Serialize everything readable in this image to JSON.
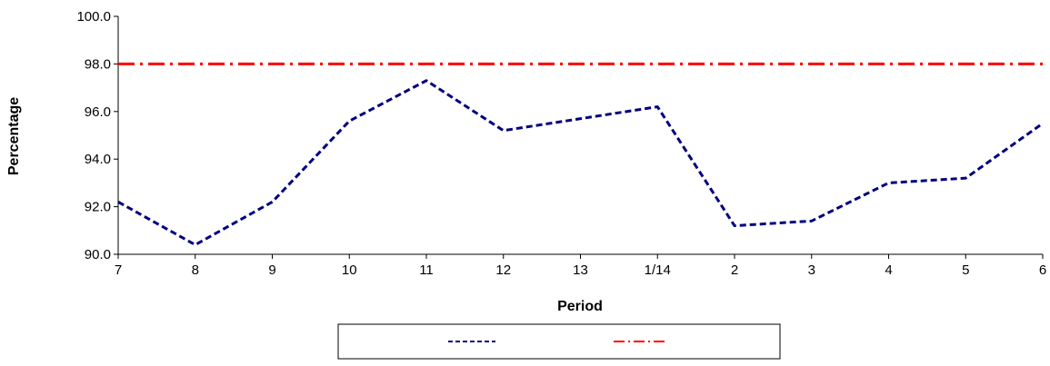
{
  "chart_data": {
    "type": "line",
    "title": "",
    "xlabel": "Period",
    "ylabel": "Percentage",
    "categories": [
      "7",
      "8",
      "9",
      "10",
      "11",
      "12",
      "13",
      "1/14",
      "2",
      "3",
      "4",
      "5",
      "6"
    ],
    "ylim": [
      90,
      100
    ],
    "yticks": [
      "90.0",
      "92.0",
      "94.0",
      "96.0",
      "98.0",
      "100.0"
    ],
    "grid": false,
    "legend_position": "bottom",
    "series": [
      {
        "name": "",
        "values": [
          92.2,
          90.4,
          92.2,
          95.6,
          97.3,
          95.2,
          95.7,
          96.2,
          91.2,
          91.4,
          93.0,
          93.2,
          95.5
        ],
        "color": "#000080",
        "style": "dashed"
      },
      {
        "name": "",
        "values": [
          98.0,
          98.0,
          98.0,
          98.0,
          98.0,
          98.0,
          98.0,
          98.0,
          98.0,
          98.0,
          98.0,
          98.0,
          98.0
        ],
        "color": "#ff0000",
        "style": "dash-dot"
      }
    ]
  }
}
